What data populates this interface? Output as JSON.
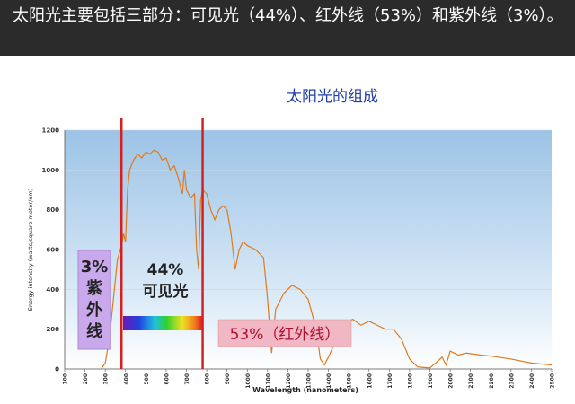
{
  "slide_title": "太阳光主要包括三部分：可见光（44%）、红外线（53%）和紫外线（3%）。",
  "chart_data": {
    "type": "line",
    "title": "太阳光的组成",
    "x_label": "Wavelength (nanometers)",
    "y_label": "Energy intensity (watts/square meter/nm)",
    "xlim": [
      100,
      2500
    ],
    "ylim": [
      0,
      1200
    ],
    "xticks": [
      100,
      200,
      300,
      400,
      500,
      600,
      700,
      800,
      900,
      1000,
      1100,
      1200,
      1300,
      1400,
      1500,
      1600,
      1700,
      1800,
      1900,
      2000,
      2100,
      2200,
      2300,
      2400,
      2500
    ],
    "yticks": [
      0,
      200,
      400,
      600,
      800,
      1000,
      1200
    ],
    "grid": true,
    "color": "#e07a1c",
    "x": [
      280,
      300,
      320,
      340,
      360,
      380,
      390,
      400,
      410,
      420,
      440,
      460,
      480,
      500,
      520,
      540,
      560,
      580,
      600,
      620,
      640,
      660,
      680,
      690,
      700,
      720,
      740,
      750,
      760,
      770,
      780,
      800,
      820,
      840,
      860,
      880,
      900,
      920,
      940,
      960,
      980,
      1000,
      1040,
      1080,
      1100,
      1120,
      1140,
      1180,
      1220,
      1260,
      1300,
      1340,
      1360,
      1380,
      1400,
      1440,
      1480,
      1520,
      1560,
      1600,
      1640,
      1680,
      1720,
      1760,
      1800,
      1840,
      1900,
      1940,
      1960,
      1980,
      2000,
      2040,
      2080,
      2150,
      2200,
      2300,
      2400,
      2500
    ],
    "y": [
      0,
      30,
      150,
      350,
      550,
      620,
      680,
      640,
      900,
      1000,
      1050,
      1080,
      1060,
      1090,
      1080,
      1100,
      1090,
      1050,
      1060,
      1000,
      1020,
      960,
      880,
      1000,
      900,
      860,
      880,
      600,
      500,
      850,
      900,
      880,
      800,
      750,
      800,
      820,
      800,
      680,
      500,
      600,
      640,
      620,
      600,
      560,
      350,
      80,
      300,
      380,
      420,
      400,
      350,
      200,
      50,
      20,
      60,
      150,
      230,
      250,
      220,
      240,
      220,
      200,
      200,
      150,
      50,
      10,
      5,
      40,
      60,
      20,
      90,
      70,
      80,
      70,
      65,
      50,
      30,
      20
    ],
    "vlines": [
      380,
      780
    ],
    "vline_color": "#d62020",
    "annotations": [
      {
        "lines": [
          "3%",
          "紫",
          "外",
          "线"
        ]
      },
      {
        "lines": [
          "44%",
          "可见光"
        ]
      },
      {
        "lines": [
          "53%（红外线）"
        ]
      }
    ]
  }
}
